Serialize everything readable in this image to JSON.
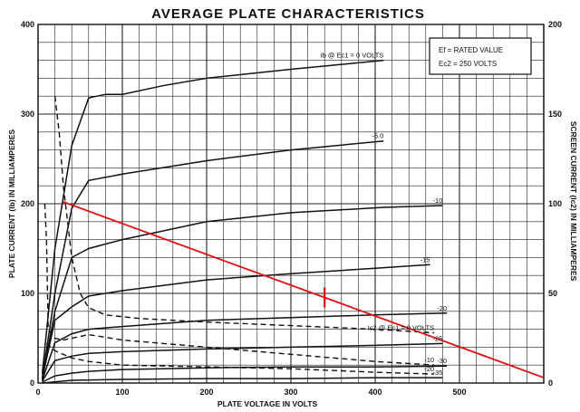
{
  "chart_data": {
    "type": "line",
    "title": "AVERAGE PLATE CHARACTERISTICS",
    "xlabel": "PLATE VOLTAGE IN VOLTS",
    "ylabel": "PLATE CURRENT (Ib) IN MILLIAMPERES",
    "y2label": "SCREEN CURRENT (Ic2) IN MILLIAMPERES",
    "xlim": [
      0,
      600
    ],
    "ylim": [
      0,
      400
    ],
    "y2lim": [
      0,
      200
    ],
    "x_ticks": [
      "0",
      "100",
      "200",
      "300",
      "400",
      "500"
    ],
    "y_ticks": [
      "0",
      "100",
      "200",
      "300",
      "400"
    ],
    "y2_ticks": [
      "0",
      "50",
      "100",
      "150",
      "200"
    ],
    "grid": true,
    "legend_box": [
      "Ef = RATED VALUE",
      "Ec2 = 250 VOLTS"
    ],
    "plate_curves": [
      {
        "label": "Ib @ Ec1 = 0 VOLTS",
        "x": [
          5,
          20,
          40,
          60,
          80,
          100,
          150,
          200,
          300,
          410
        ],
        "y": [
          10,
          150,
          265,
          318,
          322,
          322,
          332,
          340,
          350,
          360
        ]
      },
      {
        "label": "-5.0",
        "x": [
          5,
          20,
          40,
          60,
          100,
          200,
          300,
          410
        ],
        "y": [
          5,
          100,
          195,
          226,
          233,
          248,
          260,
          270
        ]
      },
      {
        "label": "-10",
        "x": [
          5,
          20,
          40,
          60,
          100,
          200,
          300,
          410,
          480
        ],
        "y": [
          5,
          80,
          140,
          150,
          160,
          180,
          190,
          196,
          198
        ]
      },
      {
        "label": "-15",
        "x": [
          5,
          20,
          40,
          60,
          100,
          200,
          300,
          400,
          465
        ],
        "y": [
          5,
          70,
          85,
          97,
          103,
          115,
          122,
          128,
          132
        ]
      },
      {
        "label": "-20",
        "x": [
          5,
          20,
          40,
          60,
          100,
          200,
          300,
          400,
          485
        ],
        "y": [
          3,
          45,
          55,
          60,
          63,
          70,
          73,
          76,
          78
        ]
      },
      {
        "label": "-25",
        "x": [
          5,
          20,
          40,
          60,
          100,
          200,
          300,
          400,
          480
        ],
        "y": [
          2,
          25,
          30,
          33,
          35,
          38,
          40,
          42,
          44
        ]
      },
      {
        "label": "-30",
        "x": [
          5,
          20,
          40,
          60,
          100,
          200,
          300,
          400,
          485
        ],
        "y": [
          1,
          8,
          11,
          13,
          15,
          17,
          18,
          18,
          19
        ]
      },
      {
        "label": "-35",
        "x": [
          5,
          40,
          100,
          200,
          300,
          400,
          480
        ],
        "y": [
          0,
          3,
          4,
          5,
          5,
          6,
          6
        ]
      }
    ],
    "screen_curves": [
      {
        "label": "Ic2 @ Ec1 = 0 VOLTS",
        "x": [
          20,
          25,
          30,
          40,
          50,
          60,
          80,
          120,
          200,
          300,
          400,
          470
        ],
        "y": [
          160,
          140,
          110,
          70,
          50,
          42,
          38,
          36,
          34,
          32,
          30,
          28
        ]
      },
      {
        "label": "-10",
        "x": [
          8,
          10,
          12,
          20,
          30,
          60,
          100,
          200,
          300,
          400,
          470
        ],
        "y": [
          100,
          80,
          30,
          25,
          24,
          27,
          24,
          20,
          16,
          12,
          10
        ]
      },
      {
        "label": "-20",
        "x": [
          10,
          20,
          40,
          60,
          100,
          200,
          300,
          400,
          470
        ],
        "y": [
          22,
          18,
          14,
          12,
          10,
          9,
          8,
          6,
          5
        ]
      }
    ],
    "load_line": {
      "x": [
        30,
        600
      ],
      "y": [
        202,
        6
      ],
      "marker_x": 340
    }
  }
}
